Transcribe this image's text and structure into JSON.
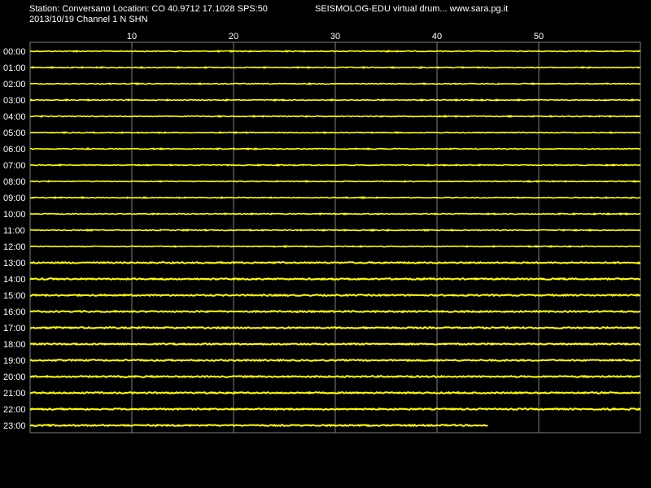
{
  "header": {
    "station_line": "Station: Conversano Location: CO 40.9712 17.1028 SPS:50",
    "date_channel_line": "2013/10/19  Channel 1 N SHN",
    "app_title": "SEISMOLOG-EDU virtual drum... www.sara.pg.it"
  },
  "drum": {
    "minute_ticks": [
      "10",
      "20",
      "30",
      "40",
      "50"
    ],
    "minutes_per_line": 60,
    "hour_labels": [
      "00:00",
      "01:00",
      "02:00",
      "03:00",
      "04:00",
      "05:00",
      "06:00",
      "07:00",
      "08:00",
      "09:00",
      "10:00",
      "11:00",
      "12:00",
      "13:00",
      "14:00",
      "15:00",
      "16:00",
      "17:00",
      "18:00",
      "19:00",
      "20:00",
      "21:00",
      "22:00",
      "23:00"
    ],
    "current_line_minutes": 45,
    "trace_color": "#ffff00",
    "grid_color": "#808080",
    "background_color": "#000000",
    "text_color": "#ffffff"
  }
}
